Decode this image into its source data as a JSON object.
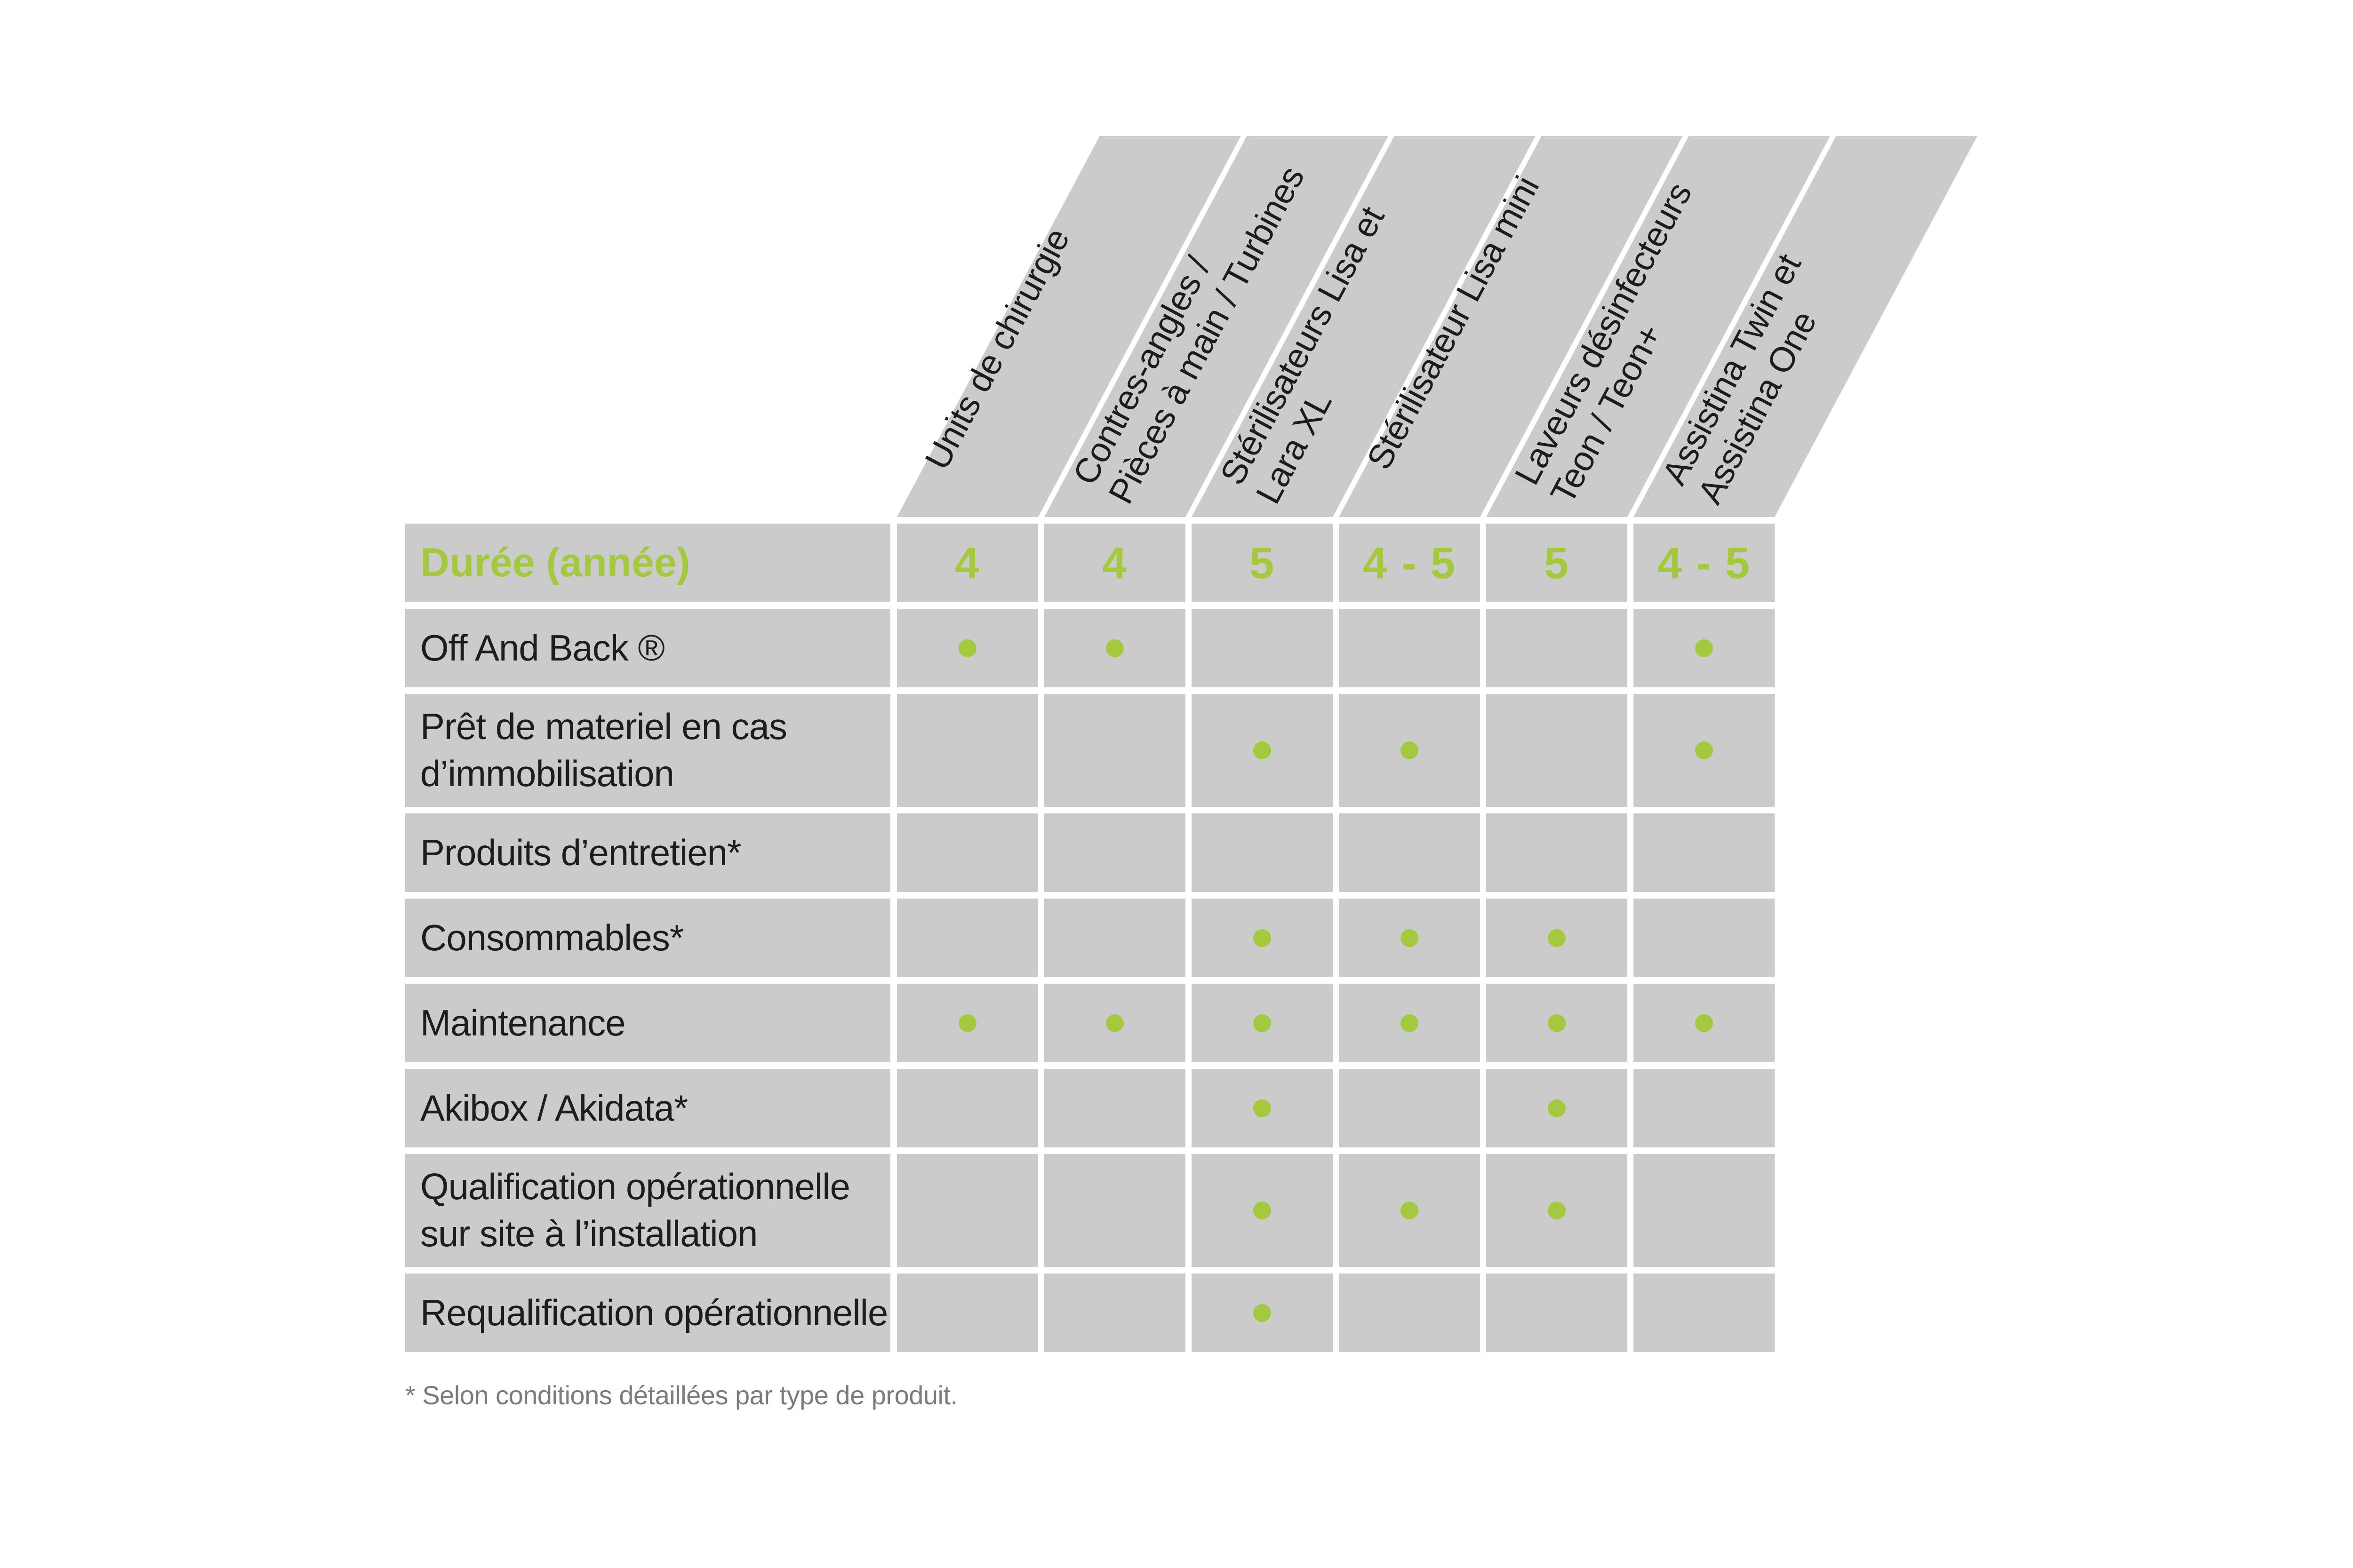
{
  "colors": {
    "cell_gray": "#cbcbcb",
    "accent_green": "#a4c93e",
    "text_dark": "#1c1c1c",
    "footnote_gray": "#7b7b7b"
  },
  "header": {
    "columns": [
      {
        "label": "Units de chirurgie"
      },
      {
        "label": "Contres-angles /\nPièces à main / Turbines"
      },
      {
        "label": "Stérilisateurs Lisa et\nLara XL"
      },
      {
        "label": "Stérilisateur Lisa mini"
      },
      {
        "label": "Laveurs désinfecteurs\nTeon / Teon+"
      },
      {
        "label": "Assistina Twin et\nAssistina One"
      }
    ]
  },
  "duration_row": {
    "label": "Durée (année)",
    "values": [
      "4",
      "4",
      "5",
      "4 - 5",
      "5",
      "4 - 5"
    ]
  },
  "rows": [
    {
      "label": "Off And Back ®",
      "dots": [
        1,
        2,
        6
      ],
      "two_line": false
    },
    {
      "label": "Prêt de materiel en cas\nd’immobilisation",
      "dots": [
        3,
        4,
        6
      ],
      "two_line": true
    },
    {
      "label": "Produits d’entretien*",
      "dots": [],
      "two_line": false
    },
    {
      "label": "Consommables*",
      "dots": [
        3,
        4,
        5
      ],
      "two_line": false
    },
    {
      "label": "Maintenance",
      "dots": [
        1,
        2,
        3,
        4,
        5,
        6
      ],
      "two_line": false
    },
    {
      "label": "Akibox / Akidata*",
      "dots": [
        3,
        5
      ],
      "two_line": false
    },
    {
      "label": "Qualification opérationnelle\nsur site à l’installation",
      "dots": [
        3,
        4,
        5
      ],
      "two_line": true
    },
    {
      "label": "Requalification opérationnelle",
      "dots": [
        3
      ],
      "two_line": false
    }
  ],
  "footnote": "* Selon conditions détaillées par type de produit."
}
